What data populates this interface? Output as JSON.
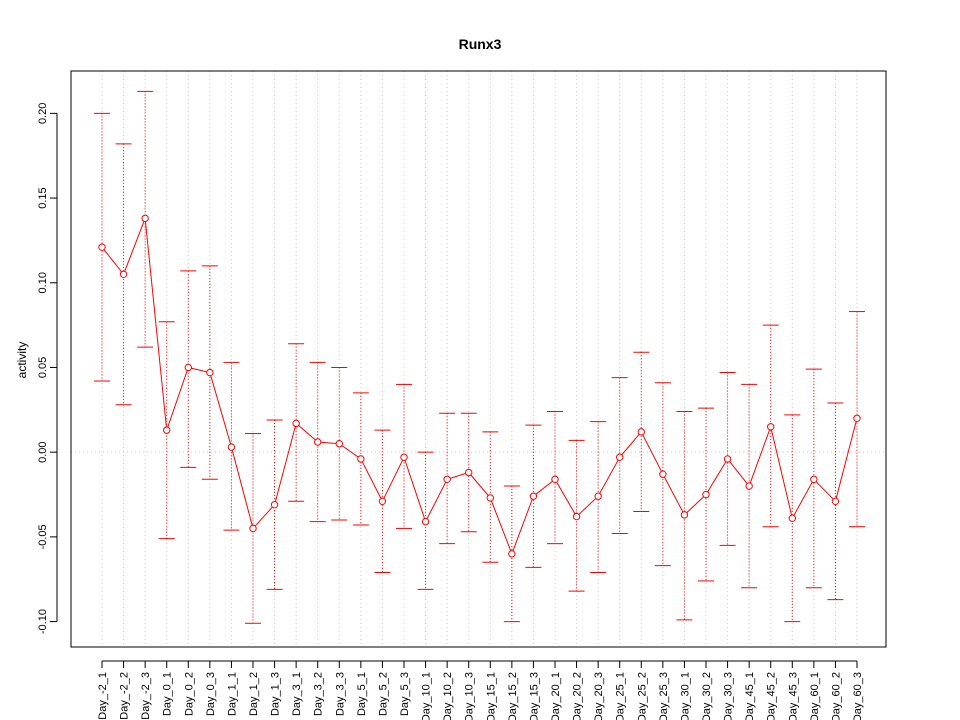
{
  "chart_data": {
    "type": "line",
    "title": "Runx3",
    "xlabel": "",
    "ylabel": "activity",
    "ylim": [
      -0.115,
      0.225
    ],
    "y_ticks": [
      -0.1,
      -0.05,
      0.0,
      0.05,
      0.1,
      0.15,
      0.2
    ],
    "y_tick_labels": [
      "-0.10",
      "-0.05",
      "0.00",
      "0.05",
      "0.10",
      "0.15",
      "0.20"
    ],
    "grid": true,
    "series_color": "#ff0000",
    "grid_color": "#c8c8c8",
    "categories": [
      "Day_-2_1",
      "Day_-2_2",
      "Day_-2_3",
      "Day_0_1",
      "Day_0_2",
      "Day_0_3",
      "Day_1_1",
      "Day_1_2",
      "Day_1_3",
      "Day_3_1",
      "Day_3_2",
      "Day_3_3",
      "Day_5_1",
      "Day_5_2",
      "Day_5_3",
      "Day_10_1",
      "Day_10_2",
      "Day_10_3",
      "Day_15_1",
      "Day_15_2",
      "Day_15_3",
      "Day_20_1",
      "Day_20_2",
      "Day_20_3",
      "Day_25_1",
      "Day_25_2",
      "Day_25_3",
      "Day_30_1",
      "Day_30_2",
      "Day_30_3",
      "Day_45_1",
      "Day_45_2",
      "Day_45_3",
      "Day_60_1",
      "Day_60_2",
      "Day_60_3"
    ],
    "series": [
      {
        "values": [
          0.121,
          0.105,
          0.138,
          0.013,
          0.05,
          0.047,
          0.003,
          -0.045,
          -0.031,
          0.017,
          0.006,
          0.005,
          -0.004,
          -0.029,
          -0.003,
          -0.041,
          -0.016,
          -0.012,
          -0.027,
          -0.06,
          -0.026,
          -0.016,
          -0.038,
          -0.026,
          -0.003,
          0.012,
          -0.013,
          -0.037,
          -0.025,
          -0.004,
          -0.02,
          0.015,
          -0.039,
          -0.016,
          -0.029,
          0.02
        ],
        "upper": [
          0.2,
          0.182,
          0.213,
          0.077,
          0.107,
          0.11,
          0.053,
          0.011,
          0.019,
          0.064,
          0.053,
          0.05,
          0.035,
          0.013,
          0.04,
          0.0,
          0.023,
          0.023,
          0.012,
          -0.02,
          0.016,
          0.024,
          0.007,
          0.018,
          0.044,
          0.059,
          0.041,
          0.024,
          0.026,
          0.047,
          0.04,
          0.075,
          0.022,
          0.049,
          0.029,
          0.083
        ],
        "lower": [
          0.042,
          0.028,
          0.062,
          -0.051,
          -0.009,
          -0.016,
          -0.046,
          -0.101,
          -0.081,
          -0.029,
          -0.041,
          -0.04,
          -0.043,
          -0.071,
          -0.045,
          -0.081,
          -0.054,
          -0.047,
          -0.065,
          -0.1,
          -0.068,
          -0.054,
          -0.082,
          -0.071,
          -0.048,
          -0.035,
          -0.067,
          -0.099,
          -0.076,
          -0.055,
          -0.08,
          -0.044,
          -0.1,
          -0.08,
          -0.087,
          -0.044
        ]
      }
    ]
  }
}
